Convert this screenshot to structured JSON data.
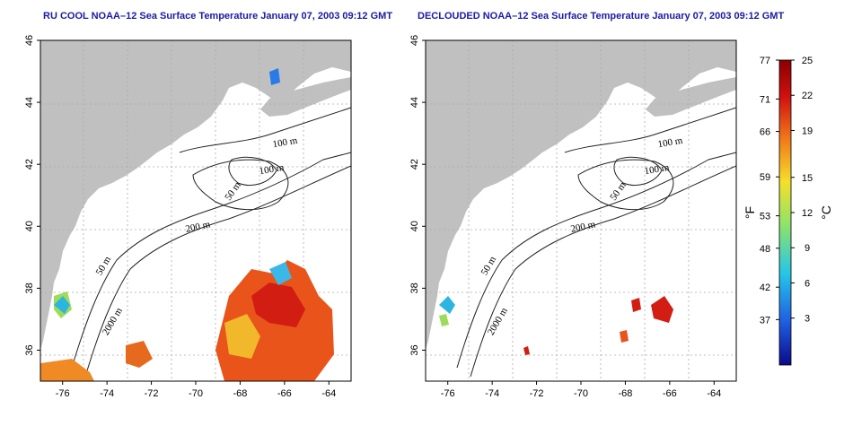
{
  "panels": [
    {
      "title": "RU COOL NOAA–12 Sea Surface Temperature January 07, 2003 09:12 GMT"
    },
    {
      "title": "DECLOUDED NOAA–12 Sea Surface Temperature January 07, 2003 09:12 GMT"
    }
  ],
  "axes": {
    "x_ticks": [
      "-76",
      "-74",
      "-72",
      "-70",
      "-68",
      "-66",
      "-64"
    ],
    "y_ticks": [
      "36",
      "38",
      "40",
      "42",
      "44",
      "46"
    ]
  },
  "contour_labels": [
    "100 m",
    "100 m",
    "50 m",
    "200 m",
    "50 m",
    "2000 m"
  ],
  "colorbar": {
    "fahrenheit_label": "°F",
    "celsius_label": "°C",
    "fahrenheit_ticks": [
      "77",
      "71",
      "66",
      "59",
      "53",
      "48",
      "42",
      "37"
    ],
    "celsius_ticks": [
      "25",
      "22",
      "19",
      "15",
      "12",
      "9",
      "6",
      "3"
    ]
  },
  "colors": {
    "land": "#c0c0c0",
    "ocean": "#ffffff",
    "title": "#1a1aa8",
    "colorbar_stops": [
      "#0a0a8a",
      "#1f5de0",
      "#25c6e8",
      "#8ee36a",
      "#f4e02a",
      "#f07a1a",
      "#d01010",
      "#8a0000"
    ]
  }
}
